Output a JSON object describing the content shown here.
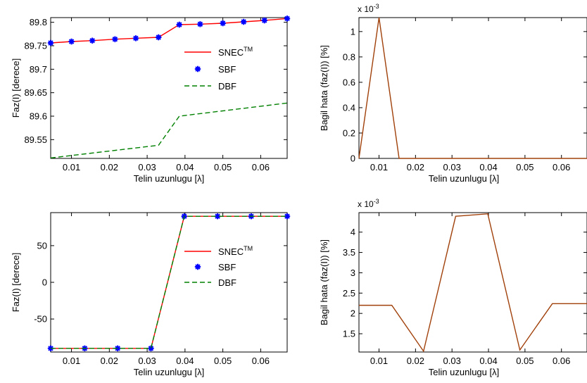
{
  "chart_data": [
    {
      "type": "line",
      "xlabel": "Telin uzunlugu [λ]",
      "ylabel": "Faz(I) [derece]",
      "xlim": [
        0.0045,
        0.067
      ],
      "ylim": [
        89.51,
        89.81
      ],
      "xticks": [
        0.01,
        0.02,
        0.03,
        0.04,
        0.05,
        0.06
      ],
      "xtick_labels": [
        "0.01",
        "0.02",
        "0.03",
        "0.04",
        "0.05",
        "0.06"
      ],
      "yticks": [
        89.55,
        89.6,
        89.65,
        89.7,
        89.75,
        89.8
      ],
      "ytick_labels": [
        "89.55",
        "89.6",
        "89.65",
        "89.7",
        "89.75",
        "89.8"
      ],
      "exponent_label": "",
      "legend_position": "inside-right",
      "legend": [
        {
          "key": "snec",
          "name": "SNEC",
          "sup": "TM"
        },
        {
          "key": "sbf",
          "name": "SBF",
          "sup": ""
        },
        {
          "key": "dbf",
          "name": "DBF",
          "sup": ""
        }
      ],
      "series": [
        {
          "key": "snec",
          "color": "#ff0000",
          "style": "solid",
          "marker": "none",
          "x": [
            0.0045,
            0.01,
            0.0155,
            0.0215,
            0.027,
            0.033,
            0.0385,
            0.044,
            0.05,
            0.0555,
            0.061,
            0.067
          ],
          "y": [
            89.756,
            89.759,
            89.761,
            89.764,
            89.766,
            89.768,
            89.795,
            89.796,
            89.798,
            89.801,
            89.804,
            89.808
          ]
        },
        {
          "key": "sbf",
          "color": "#0000ff",
          "style": "none",
          "marker": "star",
          "x": [
            0.0045,
            0.01,
            0.0155,
            0.0215,
            0.027,
            0.033,
            0.0385,
            0.044,
            0.05,
            0.0555,
            0.061,
            0.067
          ],
          "y": [
            89.756,
            89.759,
            89.761,
            89.764,
            89.766,
            89.768,
            89.795,
            89.796,
            89.798,
            89.801,
            89.804,
            89.808
          ]
        },
        {
          "key": "dbf",
          "color": "#008000",
          "style": "dashed",
          "marker": "none",
          "x": [
            0.0045,
            0.033,
            0.0385,
            0.067
          ],
          "y": [
            89.511,
            89.538,
            89.6,
            89.628
          ]
        }
      ]
    },
    {
      "type": "line",
      "xlabel": "Telin uzunlugu [λ]",
      "ylabel": "Bagil hata (faz(I)) [%]",
      "xlim": [
        0.0045,
        0.067
      ],
      "ylim": [
        0,
        1.11
      ],
      "xticks": [
        0.01,
        0.02,
        0.03,
        0.04,
        0.05,
        0.06
      ],
      "xtick_labels": [
        "0.01",
        "0.02",
        "0.03",
        "0.04",
        "0.05",
        "0.06"
      ],
      "yticks": [
        0,
        0.2,
        0.4,
        0.6,
        0.8,
        1
      ],
      "ytick_labels": [
        "0",
        "0.2",
        "0.4",
        "0.6",
        "0.8",
        "1"
      ],
      "exponent_label": "x 10",
      "exponent_sup": "-3",
      "legend": [],
      "series": [
        {
          "key": "err",
          "color": "#a0400a",
          "style": "solid",
          "marker": "none",
          "x": [
            0.0045,
            0.01,
            0.0155,
            0.021,
            0.027,
            0.033,
            0.0385,
            0.044,
            0.05,
            0.0555,
            0.061,
            0.067
          ],
          "y": [
            0,
            1.11,
            0,
            0,
            0,
            0,
            0,
            0,
            0,
            0,
            0,
            0
          ]
        }
      ]
    },
    {
      "type": "line",
      "xlabel": "Telin uzunlugu [λ]",
      "ylabel": "Faz(I) [derece]",
      "xlim": [
        0.0045,
        0.067
      ],
      "ylim": [
        -95,
        95
      ],
      "xticks": [
        0.01,
        0.02,
        0.03,
        0.04,
        0.05,
        0.06
      ],
      "xtick_labels": [
        "0.01",
        "0.02",
        "0.03",
        "0.04",
        "0.05",
        "0.06"
      ],
      "yticks": [
        -50,
        0,
        50
      ],
      "ytick_labels": [
        "-50",
        "0",
        "50"
      ],
      "exponent_label": "",
      "legend_position": "inside-right",
      "legend": [
        {
          "key": "snec",
          "name": "SNEC",
          "sup": "TM"
        },
        {
          "key": "sbf",
          "name": "SBF",
          "sup": ""
        },
        {
          "key": "dbf",
          "name": "DBF",
          "sup": ""
        }
      ],
      "series": [
        {
          "key": "snec",
          "color": "#ff0000",
          "style": "solid",
          "marker": "none",
          "x": [
            0.0045,
            0.0135,
            0.0222,
            0.031,
            0.0398,
            0.0486,
            0.0575,
            0.067
          ],
          "y": [
            -90,
            -90,
            -90,
            -90,
            90,
            90,
            90,
            90
          ]
        },
        {
          "key": "sbf",
          "color": "#0000ff",
          "style": "none",
          "marker": "star",
          "x": [
            0.0045,
            0.0135,
            0.0222,
            0.031,
            0.0398,
            0.0486,
            0.0575,
            0.067
          ],
          "y": [
            -90,
            -90,
            -90,
            -90,
            90,
            90,
            90,
            90
          ]
        },
        {
          "key": "dbf",
          "color": "#008000",
          "style": "dashed",
          "marker": "none",
          "x": [
            0.0045,
            0.0135,
            0.0222,
            0.031,
            0.0398,
            0.0486,
            0.0575,
            0.067
          ],
          "y": [
            -90,
            -90,
            -90,
            -90,
            90,
            90,
            90,
            90
          ]
        }
      ]
    },
    {
      "type": "line",
      "xlabel": "Telin uzunlugu [λ]",
      "ylabel": "Bagil hata (faz(I)) [%]",
      "xlim": [
        0.0045,
        0.067
      ],
      "ylim": [
        1.05,
        4.48
      ],
      "xticks": [
        0.01,
        0.02,
        0.03,
        0.04,
        0.05,
        0.06
      ],
      "xtick_labels": [
        "0.01",
        "0.02",
        "0.03",
        "0.04",
        "0.05",
        "0.06"
      ],
      "yticks": [
        1.5,
        2,
        2.5,
        3,
        3.5,
        4
      ],
      "ytick_labels": [
        "1.5",
        "2",
        "2.5",
        "3",
        "3.5",
        "4"
      ],
      "exponent_label": "x 10",
      "exponent_sup": "-3",
      "legend": [],
      "series": [
        {
          "key": "err",
          "color": "#a0400a",
          "style": "solid",
          "marker": "none",
          "x": [
            0.0045,
            0.0135,
            0.0222,
            0.031,
            0.0398,
            0.0486,
            0.0575,
            0.067
          ],
          "y": [
            2.2,
            2.2,
            1.07,
            4.39,
            4.45,
            1.1,
            2.24,
            2.24
          ]
        }
      ]
    }
  ]
}
